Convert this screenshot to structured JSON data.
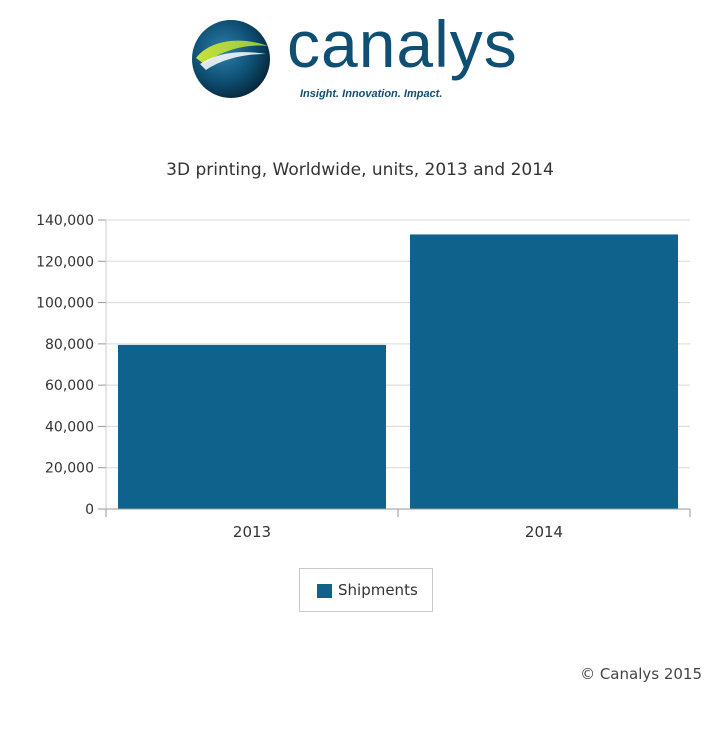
{
  "logo": {
    "wordmark": "canalys",
    "tagline": "Insight. Innovation. Impact."
  },
  "colors": {
    "bar": "#0f628c",
    "brand": "#0e4f73",
    "grid": "#d8d8d8"
  },
  "chart_data": {
    "type": "bar",
    "title": "3D printing, Worldwide, units, 2013 and 2014",
    "categories": [
      "2013",
      "2014"
    ],
    "series": [
      {
        "name": "Shipments",
        "values": [
          79500,
          133000
        ]
      }
    ],
    "ylim": [
      0,
      140000
    ],
    "yticks": [
      "0",
      "20,000",
      "40,000",
      "60,000",
      "80,000",
      "100,000",
      "120,000",
      "140,000"
    ],
    "ytick_values": [
      0,
      20000,
      40000,
      60000,
      80000,
      100000,
      120000,
      140000
    ],
    "grid": true,
    "legend_position": "bottom"
  },
  "legend": {
    "label": "Shipments"
  },
  "copyright": "© Canalys 2015"
}
